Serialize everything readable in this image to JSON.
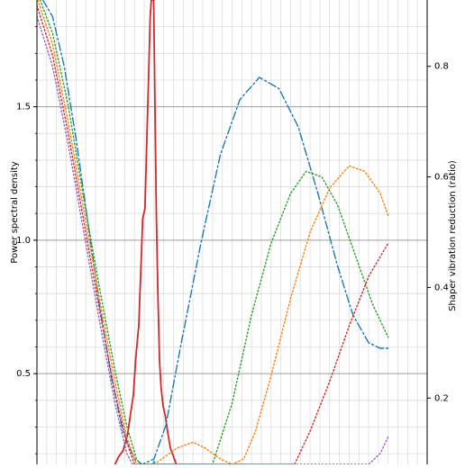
{
  "chart_data": {
    "type": "line",
    "title": "",
    "xlabel": "",
    "ylabel": "Power spectral density",
    "y2label": "Shaper vibration reduction (ratio)",
    "x_domain": [
      0,
      100
    ],
    "ylim": [
      0.16,
      1.9
    ],
    "y2lim": [
      0.08,
      0.92
    ],
    "yticks": [
      {
        "value": 0.5,
        "label": "0.5"
      },
      {
        "value": 1.0,
        "label": "1.0"
      },
      {
        "value": 1.5,
        "label": "1.5"
      }
    ],
    "y2ticks": [
      {
        "value": 0.2,
        "label": "0.2"
      },
      {
        "value": 0.4,
        "label": "0.4"
      },
      {
        "value": 0.6,
        "label": "0.6"
      },
      {
        "value": 0.8,
        "label": "0.8"
      }
    ],
    "grid": true,
    "series": [
      {
        "axis": "left",
        "color": "#d62728",
        "style": "solid",
        "points": [
          [
            20,
            0.16
          ],
          [
            21,
            0.19
          ],
          [
            22,
            0.21
          ],
          [
            23.2,
            0.27
          ],
          [
            24,
            0.35
          ],
          [
            24.7,
            0.42
          ],
          [
            25.3,
            0.55
          ],
          [
            25.7,
            0.62
          ],
          [
            26.1,
            0.68
          ],
          [
            26.4,
            0.8
          ],
          [
            26.8,
            0.95
          ],
          [
            27.1,
            1.08
          ],
          [
            27.7,
            1.12
          ],
          [
            28.1,
            1.35
          ],
          [
            28.6,
            1.6
          ],
          [
            29.0,
            1.83
          ],
          [
            29.3,
            1.9
          ],
          [
            29.9,
            1.9
          ],
          [
            30.2,
            1.55
          ],
          [
            30.6,
            1.1
          ],
          [
            31.0,
            0.8
          ],
          [
            31.4,
            0.55
          ],
          [
            31.8,
            0.45
          ],
          [
            32.3,
            0.38
          ],
          [
            32.9,
            0.34
          ],
          [
            33.5,
            0.28
          ],
          [
            34.2,
            0.22
          ],
          [
            35.0,
            0.19
          ],
          [
            35.7,
            0.16
          ]
        ]
      },
      {
        "axis": "right",
        "color": "#1f77b4",
        "style": "dashdot",
        "points": [
          [
            1.5,
            0.92
          ],
          [
            4,
            0.89
          ],
          [
            7,
            0.8
          ],
          [
            10,
            0.67
          ],
          [
            13,
            0.52
          ],
          [
            16,
            0.37
          ],
          [
            19,
            0.24
          ],
          [
            22,
            0.14
          ],
          [
            25,
            0.09
          ],
          [
            27,
            0.08
          ],
          [
            30,
            0.09
          ],
          [
            33,
            0.15
          ],
          [
            37,
            0.3
          ],
          [
            42,
            0.48
          ],
          [
            47,
            0.64
          ],
          [
            52,
            0.74
          ],
          [
            57,
            0.78
          ],
          [
            62,
            0.76
          ],
          [
            67,
            0.69
          ],
          [
            72,
            0.57
          ],
          [
            77,
            0.44
          ],
          [
            81,
            0.35
          ],
          [
            85,
            0.3
          ],
          [
            88,
            0.29
          ],
          [
            90,
            0.29
          ]
        ]
      },
      {
        "axis": "right",
        "color": "#2ca02c",
        "style": "dotted",
        "points": [
          [
            0.8,
            0.92
          ],
          [
            4,
            0.86
          ],
          [
            8,
            0.73
          ],
          [
            12,
            0.56
          ],
          [
            16,
            0.4
          ],
          [
            20,
            0.25
          ],
          [
            23,
            0.15
          ],
          [
            25.5,
            0.09
          ],
          [
            26.5,
            0.08
          ],
          [
            35,
            0.08
          ],
          [
            42,
            0.08
          ],
          [
            45,
            0.08
          ],
          [
            50,
            0.19
          ],
          [
            55,
            0.35
          ],
          [
            60,
            0.48
          ],
          [
            65,
            0.57
          ],
          [
            69,
            0.61
          ],
          [
            73,
            0.6
          ],
          [
            77,
            0.55
          ],
          [
            81,
            0.47
          ],
          [
            86,
            0.37
          ],
          [
            90,
            0.31
          ]
        ]
      },
      {
        "axis": "right",
        "color": "#ff7f0e",
        "style": "dotted",
        "points": [
          [
            0.2,
            0.92
          ],
          [
            4,
            0.84
          ],
          [
            8,
            0.7
          ],
          [
            12,
            0.54
          ],
          [
            16,
            0.38
          ],
          [
            20,
            0.23
          ],
          [
            23,
            0.13
          ],
          [
            25.5,
            0.08
          ],
          [
            28,
            0.08
          ],
          [
            30,
            0.08
          ],
          [
            32,
            0.09
          ],
          [
            36,
            0.11
          ],
          [
            40,
            0.12
          ],
          [
            43,
            0.11
          ],
          [
            47,
            0.09
          ],
          [
            50,
            0.08
          ],
          [
            53,
            0.09
          ],
          [
            56,
            0.14
          ],
          [
            60,
            0.24
          ],
          [
            65,
            0.38
          ],
          [
            70,
            0.5
          ],
          [
            75,
            0.58
          ],
          [
            80,
            0.62
          ],
          [
            84,
            0.61
          ],
          [
            88,
            0.57
          ],
          [
            90,
            0.53
          ]
        ]
      },
      {
        "axis": "right",
        "color": "#d62728",
        "style": "dotted",
        "points": [
          [
            0,
            0.91
          ],
          [
            4,
            0.82
          ],
          [
            8,
            0.68
          ],
          [
            12,
            0.52
          ],
          [
            16,
            0.36
          ],
          [
            20,
            0.21
          ],
          [
            23,
            0.12
          ],
          [
            25,
            0.08
          ],
          [
            66,
            0.08
          ],
          [
            70,
            0.14
          ],
          [
            75,
            0.23
          ],
          [
            80,
            0.33
          ],
          [
            85,
            0.42
          ],
          [
            90,
            0.48
          ]
        ]
      },
      {
        "axis": "right",
        "color": "#9467bd",
        "style": "dotted",
        "points": [
          [
            0,
            0.89
          ],
          [
            4,
            0.8
          ],
          [
            8,
            0.66
          ],
          [
            12,
            0.5
          ],
          [
            16,
            0.34
          ],
          [
            20,
            0.19
          ],
          [
            23,
            0.1
          ],
          [
            24.5,
            0.08
          ],
          [
            85,
            0.08
          ],
          [
            88,
            0.1
          ],
          [
            90,
            0.13
          ]
        ]
      },
      {
        "axis": "right",
        "color": "#17becf",
        "style": "solid",
        "points": [
          [
            29.5,
            0.077
          ],
          [
            30.0,
            0.086
          ],
          [
            30.5,
            0.077
          ]
        ]
      }
    ]
  }
}
